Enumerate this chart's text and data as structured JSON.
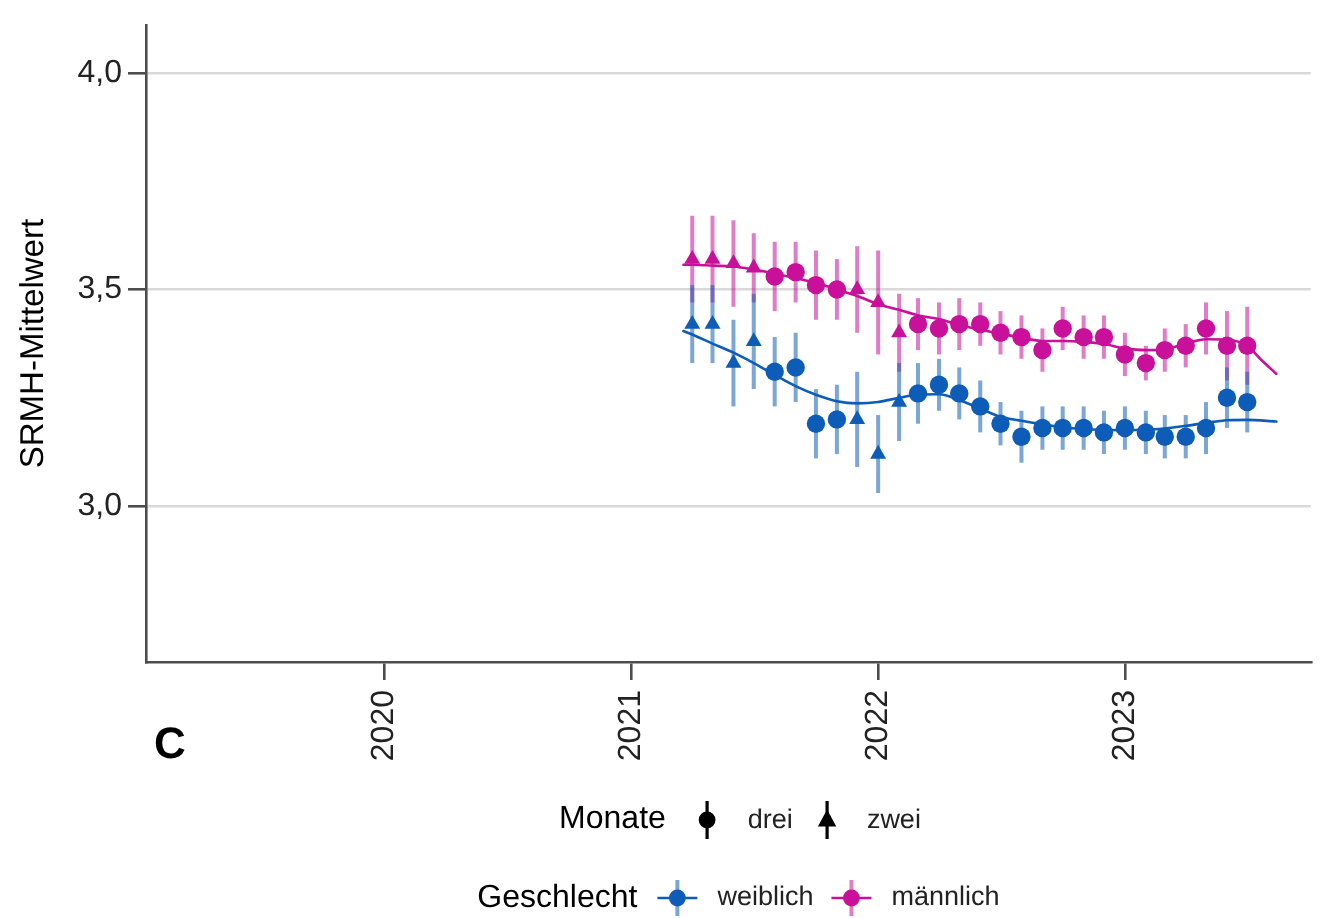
{
  "chart_data": {
    "type": "scatter",
    "ylabel": "SRMH-Mittelwert",
    "legend_title": "Geschlecht",
    "annotations": [
      "C",
      "Monate",
      "drei",
      "zwei"
    ],
    "xlim": [
      "2019-01-14",
      "2023-10-03"
    ],
    "xticks": [
      "2020",
      "2021",
      "2022",
      "2023"
    ],
    "ylim": [
      2.64,
      4.11
    ],
    "yticks": [
      {
        "value": 3,
        "label": "3,0"
      },
      {
        "value": 3.5,
        "label": "3,5"
      },
      {
        "value": 4,
        "label": "4,0"
      }
    ],
    "grid": "y",
    "legend": "bottom",
    "series": [
      {
        "name": "weiblich",
        "color": "#0d5db8",
        "marker": "circle",
        "x": [
          "2021-08",
          "2021-09",
          "2021-10",
          "2021-11",
          "2022-03",
          "2022-04",
          "2022-05",
          "2022-06",
          "2022-07",
          "2022-08",
          "2022-09",
          "2022-10",
          "2022-11",
          "2022-12",
          "2023-01",
          "2023-02",
          "2023-03",
          "2023-04",
          "2023-05",
          "2023-06",
          "2023-07"
        ],
        "values": [
          3.31,
          3.32,
          3.19,
          3.2,
          3.26,
          3.28,
          3.26,
          3.23,
          3.19,
          3.16,
          3.18,
          3.18,
          3.18,
          3.17,
          3.18,
          3.17,
          3.16,
          3.16,
          3.18,
          3.25,
          3.24
        ],
        "errors": [
          0.08,
          0.08,
          0.08,
          0.08,
          0.07,
          0.06,
          0.06,
          0.06,
          0.05,
          0.06,
          0.05,
          0.05,
          0.05,
          0.05,
          0.05,
          0.05,
          0.05,
          0.05,
          0.06,
          0.07,
          0.07
        ]
      },
      {
        "color": "#0d5db8",
        "marker": "triangle",
        "x": [
          "2021-04",
          "2021-05",
          "2021-06",
          "2021-07",
          "2021-12",
          "2022-01",
          "2022-02"
        ],
        "values": [
          3.42,
          3.42,
          3.33,
          3.38,
          3.2,
          3.12,
          3.24
        ],
        "errors": [
          0.09,
          0.09,
          0.1,
          0.11,
          0.11,
          0.09,
          0.09
        ]
      },
      {
        "name": "männlich",
        "color": "#c8109a",
        "marker": "circle",
        "x": [
          "2021-08",
          "2021-09",
          "2021-10",
          "2021-11",
          "2022-03",
          "2022-04",
          "2022-05",
          "2022-06",
          "2022-07",
          "2022-08",
          "2022-09",
          "2022-10",
          "2022-11",
          "2022-12",
          "2023-01",
          "2023-02",
          "2023-03",
          "2023-04",
          "2023-05",
          "2023-06",
          "2023-07"
        ],
        "values": [
          3.53,
          3.54,
          3.51,
          3.5,
          3.42,
          3.41,
          3.42,
          3.42,
          3.4,
          3.39,
          3.36,
          3.41,
          3.39,
          3.39,
          3.35,
          3.33,
          3.36,
          3.37,
          3.41,
          3.37,
          3.37
        ],
        "errors": [
          0.08,
          0.07,
          0.08,
          0.07,
          0.06,
          0.06,
          0.06,
          0.05,
          0.05,
          0.05,
          0.05,
          0.05,
          0.05,
          0.05,
          0.05,
          0.04,
          0.05,
          0.05,
          0.06,
          0.08,
          0.09
        ]
      },
      {
        "color": "#c8109a",
        "marker": "triangle",
        "x": [
          "2021-04",
          "2021-05",
          "2021-06",
          "2021-07",
          "2021-12",
          "2022-01",
          "2022-02"
        ],
        "values": [
          3.57,
          3.57,
          3.56,
          3.55,
          3.5,
          3.47,
          3.4
        ],
        "errors": [
          0.1,
          0.1,
          0.1,
          0.08,
          0.1,
          0.12,
          0.09
        ]
      },
      {
        "type": "line",
        "color": "#0d5db8",
        "x": [
          "2021-03-19",
          "2021-04",
          "2021-05",
          "2021-06",
          "2021-07",
          "2021-08",
          "2021-09",
          "2021-10",
          "2021-11",
          "2021-12",
          "2022-01",
          "2022-02",
          "2022-03",
          "2022-04",
          "2022-05",
          "2022-06",
          "2022-07",
          "2022-08",
          "2022-09",
          "2022-10",
          "2022-11",
          "2022-12",
          "2023-01",
          "2023-02",
          "2023-03",
          "2023-04",
          "2023-05",
          "2023-06",
          "2023-07",
          "2023-08-13"
        ],
        "values": [
          3.404,
          3.396,
          3.375,
          3.354,
          3.33,
          3.303,
          3.277,
          3.257,
          3.242,
          3.237,
          3.24,
          3.25,
          3.257,
          3.258,
          3.245,
          3.225,
          3.206,
          3.197,
          3.189,
          3.182,
          3.178,
          3.176,
          3.175,
          3.176,
          3.179,
          3.185,
          3.192,
          3.198,
          3.199,
          3.195
        ]
      },
      {
        "type": "line",
        "color": "#c8109a",
        "x": [
          "2021-03-19",
          "2021-04",
          "2021-05",
          "2021-06",
          "2021-07",
          "2021-08",
          "2021-09",
          "2021-10",
          "2021-11",
          "2021-12",
          "2022-01",
          "2022-02",
          "2022-03",
          "2022-04",
          "2022-05",
          "2022-06",
          "2022-07",
          "2022-08",
          "2022-09",
          "2022-10",
          "2022-11",
          "2022-12",
          "2023-01",
          "2023-02",
          "2023-03",
          "2023-04",
          "2023-05",
          "2023-06",
          "2023-07",
          "2023-07-20",
          "2023-08-13"
        ],
        "values": [
          3.557,
          3.557,
          3.555,
          3.553,
          3.546,
          3.537,
          3.526,
          3.515,
          3.5,
          3.485,
          3.466,
          3.453,
          3.44,
          3.432,
          3.418,
          3.407,
          3.398,
          3.389,
          3.381,
          3.381,
          3.379,
          3.374,
          3.364,
          3.36,
          3.362,
          3.375,
          3.385,
          3.384,
          3.37,
          3.34,
          3.305
        ]
      }
    ]
  }
}
